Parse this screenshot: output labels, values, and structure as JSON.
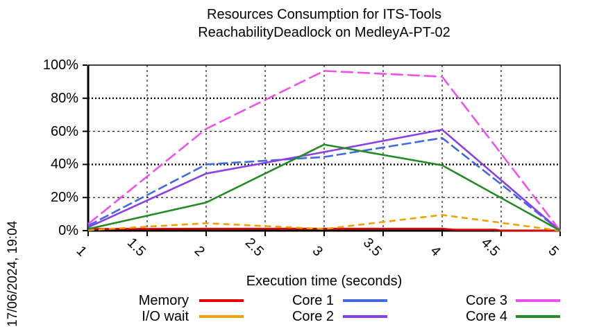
{
  "chart_data": {
    "type": "line",
    "title": "Resources Consumption for ITS-Tools",
    "subtitle": "ReachabilityDeadlock on MedleyA-PT-02",
    "xlabel": "Execution time (seconds)",
    "ylabel": "",
    "timestamp": "17/06/2024, 19:04",
    "xlim": [
      1,
      5
    ],
    "ylim": [
      0,
      100
    ],
    "grid": true,
    "legend_position": "bottom",
    "xticks": {
      "values": [
        1,
        1.5,
        2,
        2.5,
        3,
        3.5,
        4,
        4.5,
        5
      ],
      "labels": [
        "1",
        "1.5",
        "2",
        "2.5",
        "3",
        "3.5",
        "4",
        "4.5",
        "5"
      ]
    },
    "yticks": {
      "values": [
        0,
        20,
        40,
        60,
        80,
        100
      ],
      "labels": [
        "0%",
        "20%",
        "40%",
        "60%",
        "80%",
        "100%"
      ]
    },
    "series": [
      {
        "name": "Memory",
        "color": "#e60000",
        "dash": "",
        "points": [
          [
            1,
            1.0
          ],
          [
            2,
            1.2
          ],
          [
            3,
            1.2
          ],
          [
            4,
            1.2
          ],
          [
            4.1,
            0.6
          ],
          [
            4.45,
            0.6
          ],
          [
            4.5,
            0
          ],
          [
            5,
            0
          ]
        ]
      },
      {
        "name": "I/O wait",
        "color": "#f2a000",
        "dash": "9 6",
        "points": [
          [
            1,
            0.3
          ],
          [
            2,
            4.5
          ],
          [
            3,
            1
          ],
          [
            4,
            9.5
          ],
          [
            5,
            0
          ]
        ]
      },
      {
        "name": "Core 1",
        "color": "#4169e1",
        "dash": "14 5",
        "points": [
          [
            1,
            3
          ],
          [
            2,
            40
          ],
          [
            3,
            44.5
          ],
          [
            4,
            56
          ],
          [
            5,
            0
          ]
        ]
      },
      {
        "name": "Core 2",
        "color": "#8840e8",
        "dash": "",
        "points": [
          [
            1,
            2
          ],
          [
            2,
            34.5
          ],
          [
            3,
            47.5
          ],
          [
            4,
            61
          ],
          [
            5,
            0
          ]
        ]
      },
      {
        "name": "Core 3",
        "color": "#ee4fee",
        "dash": "18 6",
        "points": [
          [
            1,
            4
          ],
          [
            2,
            61.5
          ],
          [
            3,
            96.5
          ],
          [
            4,
            93
          ],
          [
            5,
            0
          ]
        ]
      },
      {
        "name": "Core 4",
        "color": "#228b22",
        "dash": "",
        "points": [
          [
            1,
            1
          ],
          [
            2,
            17
          ],
          [
            3,
            52
          ],
          [
            4,
            39.5
          ],
          [
            5,
            0
          ]
        ]
      }
    ]
  }
}
